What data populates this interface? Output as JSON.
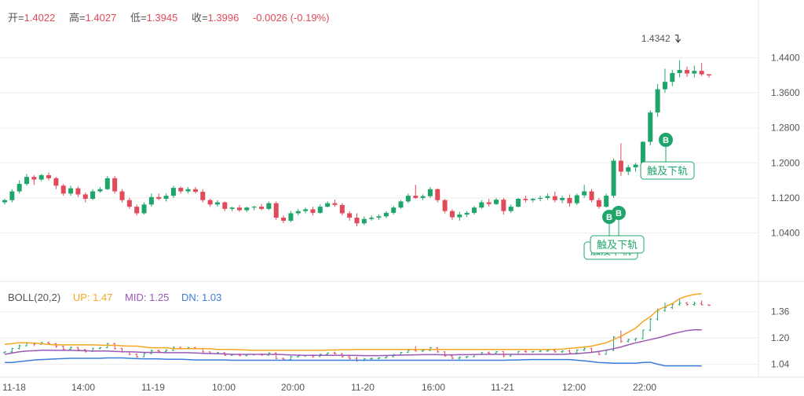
{
  "legend": {
    "open_label": "开=",
    "open": "1.4022",
    "high_label": "高=",
    "high": "1.4027",
    "low_label": "低=",
    "low": "1.3945",
    "close_label": "收=",
    "close": "1.3996",
    "change": "-0.0026 (-0.19%)"
  },
  "indicator": {
    "name": "BOLL(20,2)",
    "up": "UP: 1.47",
    "mid": "MID: 1.25",
    "dn": "DN: 1.03"
  },
  "colors": {
    "up": "#1fa56a",
    "down": "#e04a59",
    "boll_up": "#f5a623",
    "boll_mid": "#9b59b6",
    "boll_dn": "#3b7ddd",
    "grid": "#eeeeee"
  },
  "chart_data": {
    "type": "candlestick",
    "price_axis": {
      "ylim": [
        0.98,
        1.5
      ],
      "ticks": [
        1.04,
        1.12,
        1.2,
        1.28,
        1.36,
        1.44
      ],
      "tick_labels": [
        "1.0400",
        "1.1200",
        "1.2000",
        "1.2800",
        "1.3600",
        "1.4400"
      ]
    },
    "boll_axis": {
      "ylim": [
        0.98,
        1.44
      ],
      "ticks": [
        1.04,
        1.2,
        1.36
      ],
      "tick_labels": [
        "1.04",
        "1.20",
        "1.36"
      ]
    },
    "x_labels": [
      "11-18",
      "14:00",
      "11-19",
      "10:00",
      "20:00",
      "11-20",
      "16:00",
      "11-21",
      "12:00",
      "22:00"
    ],
    "max_annotation": "1.4342",
    "signals": [
      {
        "text": "触及下轨",
        "marker": "B"
      },
      {
        "text": "触及下轨",
        "marker": "B"
      },
      {
        "text": "触及下轨",
        "marker": "B"
      }
    ],
    "candles": [
      [
        1.11,
        1.118,
        1.105,
        1.115
      ],
      [
        1.115,
        1.14,
        1.11,
        1.135
      ],
      [
        1.135,
        1.16,
        1.13,
        1.152
      ],
      [
        1.152,
        1.175,
        1.148,
        1.168
      ],
      [
        1.168,
        1.172,
        1.15,
        1.162
      ],
      [
        1.162,
        1.175,
        1.158,
        1.172
      ],
      [
        1.172,
        1.178,
        1.16,
        1.165
      ],
      [
        1.165,
        1.168,
        1.14,
        1.148
      ],
      [
        1.148,
        1.152,
        1.125,
        1.13
      ],
      [
        1.13,
        1.148,
        1.125,
        1.142
      ],
      [
        1.142,
        1.146,
        1.122,
        1.128
      ],
      [
        1.128,
        1.132,
        1.11,
        1.118
      ],
      [
        1.118,
        1.14,
        1.115,
        1.135
      ],
      [
        1.135,
        1.145,
        1.132,
        1.14
      ],
      [
        1.14,
        1.17,
        1.138,
        1.165
      ],
      [
        1.165,
        1.17,
        1.13,
        1.135
      ],
      [
        1.135,
        1.14,
        1.11,
        1.115
      ],
      [
        1.115,
        1.12,
        1.095,
        1.1
      ],
      [
        1.1,
        1.105,
        1.08,
        1.085
      ],
      [
        1.085,
        1.11,
        1.082,
        1.105
      ],
      [
        1.105,
        1.13,
        1.1,
        1.122
      ],
      [
        1.122,
        1.13,
        1.115,
        1.118
      ],
      [
        1.118,
        1.13,
        1.112,
        1.125
      ],
      [
        1.125,
        1.148,
        1.12,
        1.143
      ],
      [
        1.143,
        1.146,
        1.13,
        1.135
      ],
      [
        1.135,
        1.145,
        1.13,
        1.14
      ],
      [
        1.14,
        1.145,
        1.13,
        1.134
      ],
      [
        1.134,
        1.14,
        1.11,
        1.115
      ],
      [
        1.115,
        1.118,
        1.1,
        1.105
      ],
      [
        1.105,
        1.115,
        1.1,
        1.11
      ],
      [
        1.11,
        1.112,
        1.09,
        1.095
      ],
      [
        1.095,
        1.1,
        1.09,
        1.098
      ],
      [
        1.098,
        1.104,
        1.088,
        1.092
      ],
      [
        1.092,
        1.1,
        1.088,
        1.098
      ],
      [
        1.098,
        1.102,
        1.092,
        1.1
      ],
      [
        1.1,
        1.106,
        1.092,
        1.095
      ],
      [
        1.095,
        1.112,
        1.092,
        1.108
      ],
      [
        1.108,
        1.112,
        1.07,
        1.075
      ],
      [
        1.075,
        1.08,
        1.062,
        1.068
      ],
      [
        1.068,
        1.09,
        1.065,
        1.085
      ],
      [
        1.085,
        1.095,
        1.08,
        1.09
      ],
      [
        1.09,
        1.098,
        1.085,
        1.094
      ],
      [
        1.094,
        1.1,
        1.08,
        1.086
      ],
      [
        1.086,
        1.105,
        1.084,
        1.1
      ],
      [
        1.1,
        1.112,
        1.098,
        1.108
      ],
      [
        1.108,
        1.116,
        1.1,
        1.104
      ],
      [
        1.104,
        1.108,
        1.08,
        1.085
      ],
      [
        1.085,
        1.09,
        1.068,
        1.075
      ],
      [
        1.075,
        1.085,
        1.055,
        1.062
      ],
      [
        1.062,
        1.078,
        1.058,
        1.072
      ],
      [
        1.072,
        1.08,
        1.068,
        1.075
      ],
      [
        1.075,
        1.082,
        1.07,
        1.078
      ],
      [
        1.078,
        1.09,
        1.074,
        1.086
      ],
      [
        1.086,
        1.102,
        1.082,
        1.098
      ],
      [
        1.098,
        1.115,
        1.095,
        1.112
      ],
      [
        1.112,
        1.13,
        1.108,
        1.125
      ],
      [
        1.125,
        1.15,
        1.118,
        1.12
      ],
      [
        1.12,
        1.128,
        1.115,
        1.124
      ],
      [
        1.124,
        1.145,
        1.12,
        1.14
      ],
      [
        1.14,
        1.142,
        1.11,
        1.115
      ],
      [
        1.115,
        1.118,
        1.085,
        1.09
      ],
      [
        1.09,
        1.094,
        1.07,
        1.076
      ],
      [
        1.076,
        1.088,
        1.068,
        1.082
      ],
      [
        1.082,
        1.09,
        1.076,
        1.086
      ],
      [
        1.086,
        1.102,
        1.082,
        1.098
      ],
      [
        1.098,
        1.115,
        1.095,
        1.11
      ],
      [
        1.11,
        1.118,
        1.1,
        1.106
      ],
      [
        1.106,
        1.12,
        1.104,
        1.116
      ],
      [
        1.116,
        1.12,
        1.082,
        1.09
      ],
      [
        1.09,
        1.105,
        1.086,
        1.1
      ],
      [
        1.1,
        1.12,
        1.098,
        1.118
      ],
      [
        1.118,
        1.125,
        1.11,
        1.115
      ],
      [
        1.115,
        1.12,
        1.11,
        1.118
      ],
      [
        1.118,
        1.125,
        1.112,
        1.12
      ],
      [
        1.12,
        1.13,
        1.116,
        1.124
      ],
      [
        1.124,
        1.135,
        1.11,
        1.115
      ],
      [
        1.115,
        1.125,
        1.108,
        1.12
      ],
      [
        1.12,
        1.128,
        1.1,
        1.108
      ],
      [
        1.108,
        1.13,
        1.104,
        1.126
      ],
      [
        1.126,
        1.15,
        1.12,
        1.135
      ],
      [
        1.135,
        1.14,
        1.11,
        1.115
      ],
      [
        1.115,
        1.12,
        1.095,
        1.1
      ],
      [
        1.1,
        1.13,
        1.098,
        1.125
      ],
      [
        1.125,
        1.21,
        1.12,
        1.205
      ],
      [
        1.205,
        1.245,
        1.17,
        1.18
      ],
      [
        1.18,
        1.195,
        1.172,
        1.19
      ],
      [
        1.19,
        1.2,
        1.18,
        1.196
      ],
      [
        1.196,
        1.25,
        1.192,
        1.248
      ],
      [
        1.248,
        1.32,
        1.24,
        1.315
      ],
      [
        1.315,
        1.38,
        1.305,
        1.368
      ],
      [
        1.368,
        1.415,
        1.36,
        1.385
      ],
      [
        1.385,
        1.412,
        1.375,
        1.405
      ],
      [
        1.405,
        1.434,
        1.395,
        1.412
      ],
      [
        1.412,
        1.42,
        1.396,
        1.404
      ],
      [
        1.404,
        1.422,
        1.395,
        1.41
      ],
      [
        1.41,
        1.428,
        1.398,
        1.402
      ],
      [
        1.4022,
        1.4027,
        1.3945,
        1.3996
      ]
    ],
    "boll_up": [
      1.16,
      1.165,
      1.17,
      1.17,
      1.168,
      1.165,
      1.16,
      1.158,
      1.158,
      1.158,
      1.158,
      1.158,
      1.158,
      1.156,
      1.155,
      1.155,
      1.152,
      1.15,
      1.15,
      1.145,
      1.14,
      1.14,
      1.14,
      1.135,
      1.135,
      1.135,
      1.135,
      1.135,
      1.135,
      1.13,
      1.13,
      1.13,
      1.128,
      1.126,
      1.124,
      1.124,
      1.124,
      1.124,
      1.124,
      1.124,
      1.124,
      1.124,
      1.124,
      1.124,
      1.126,
      1.126,
      1.128,
      1.128,
      1.13,
      1.13,
      1.13,
      1.13,
      1.13,
      1.13,
      1.13,
      1.13,
      1.13,
      1.13,
      1.13,
      1.13,
      1.13,
      1.13,
      1.13,
      1.13,
      1.13,
      1.13,
      1.13,
      1.13,
      1.13,
      1.13,
      1.13,
      1.13,
      1.13,
      1.13,
      1.13,
      1.13,
      1.132,
      1.136,
      1.14,
      1.145,
      1.15,
      1.16,
      1.17,
      1.19,
      1.21,
      1.235,
      1.26,
      1.3,
      1.33,
      1.37,
      1.39,
      1.41,
      1.44,
      1.455,
      1.465,
      1.47
    ],
    "boll_mid": [
      1.1,
      1.108,
      1.115,
      1.12,
      1.122,
      1.125,
      1.125,
      1.124,
      1.124,
      1.124,
      1.123,
      1.122,
      1.12,
      1.12,
      1.12,
      1.118,
      1.116,
      1.115,
      1.114,
      1.112,
      1.112,
      1.112,
      1.11,
      1.11,
      1.11,
      1.11,
      1.108,
      1.106,
      1.105,
      1.104,
      1.102,
      1.1,
      1.1,
      1.1,
      1.1,
      1.1,
      1.1,
      1.1,
      1.098,
      1.096,
      1.095,
      1.094,
      1.094,
      1.094,
      1.094,
      1.094,
      1.094,
      1.094,
      1.093,
      1.092,
      1.092,
      1.092,
      1.093,
      1.094,
      1.095,
      1.096,
      1.097,
      1.098,
      1.098,
      1.098,
      1.097,
      1.097,
      1.098,
      1.098,
      1.099,
      1.1,
      1.1,
      1.1,
      1.1,
      1.1,
      1.1,
      1.1,
      1.1,
      1.1,
      1.1,
      1.1,
      1.1,
      1.102,
      1.104,
      1.108,
      1.112,
      1.118,
      1.125,
      1.135,
      1.145,
      1.158,
      1.17,
      1.18,
      1.19,
      1.2,
      1.212,
      1.225,
      1.235,
      1.245,
      1.25,
      1.25
    ],
    "boll_dn": [
      1.05,
      1.05,
      1.055,
      1.06,
      1.065,
      1.068,
      1.07,
      1.072,
      1.074,
      1.076,
      1.076,
      1.076,
      1.076,
      1.076,
      1.078,
      1.078,
      1.078,
      1.076,
      1.074,
      1.072,
      1.072,
      1.072,
      1.07,
      1.07,
      1.07,
      1.068,
      1.066,
      1.066,
      1.066,
      1.066,
      1.066,
      1.064,
      1.064,
      1.064,
      1.064,
      1.064,
      1.064,
      1.064,
      1.064,
      1.064,
      1.064,
      1.064,
      1.064,
      1.064,
      1.064,
      1.064,
      1.064,
      1.064,
      1.064,
      1.064,
      1.064,
      1.064,
      1.064,
      1.064,
      1.064,
      1.064,
      1.064,
      1.064,
      1.064,
      1.064,
      1.064,
      1.064,
      1.064,
      1.064,
      1.064,
      1.064,
      1.064,
      1.064,
      1.064,
      1.065,
      1.066,
      1.067,
      1.068,
      1.068,
      1.068,
      1.068,
      1.068,
      1.068,
      1.064,
      1.06,
      1.055,
      1.05,
      1.048,
      1.046,
      1.046,
      1.046,
      1.046,
      1.05,
      1.052,
      1.04,
      1.03,
      1.03,
      1.03,
      1.03,
      1.03,
      1.03
    ]
  }
}
